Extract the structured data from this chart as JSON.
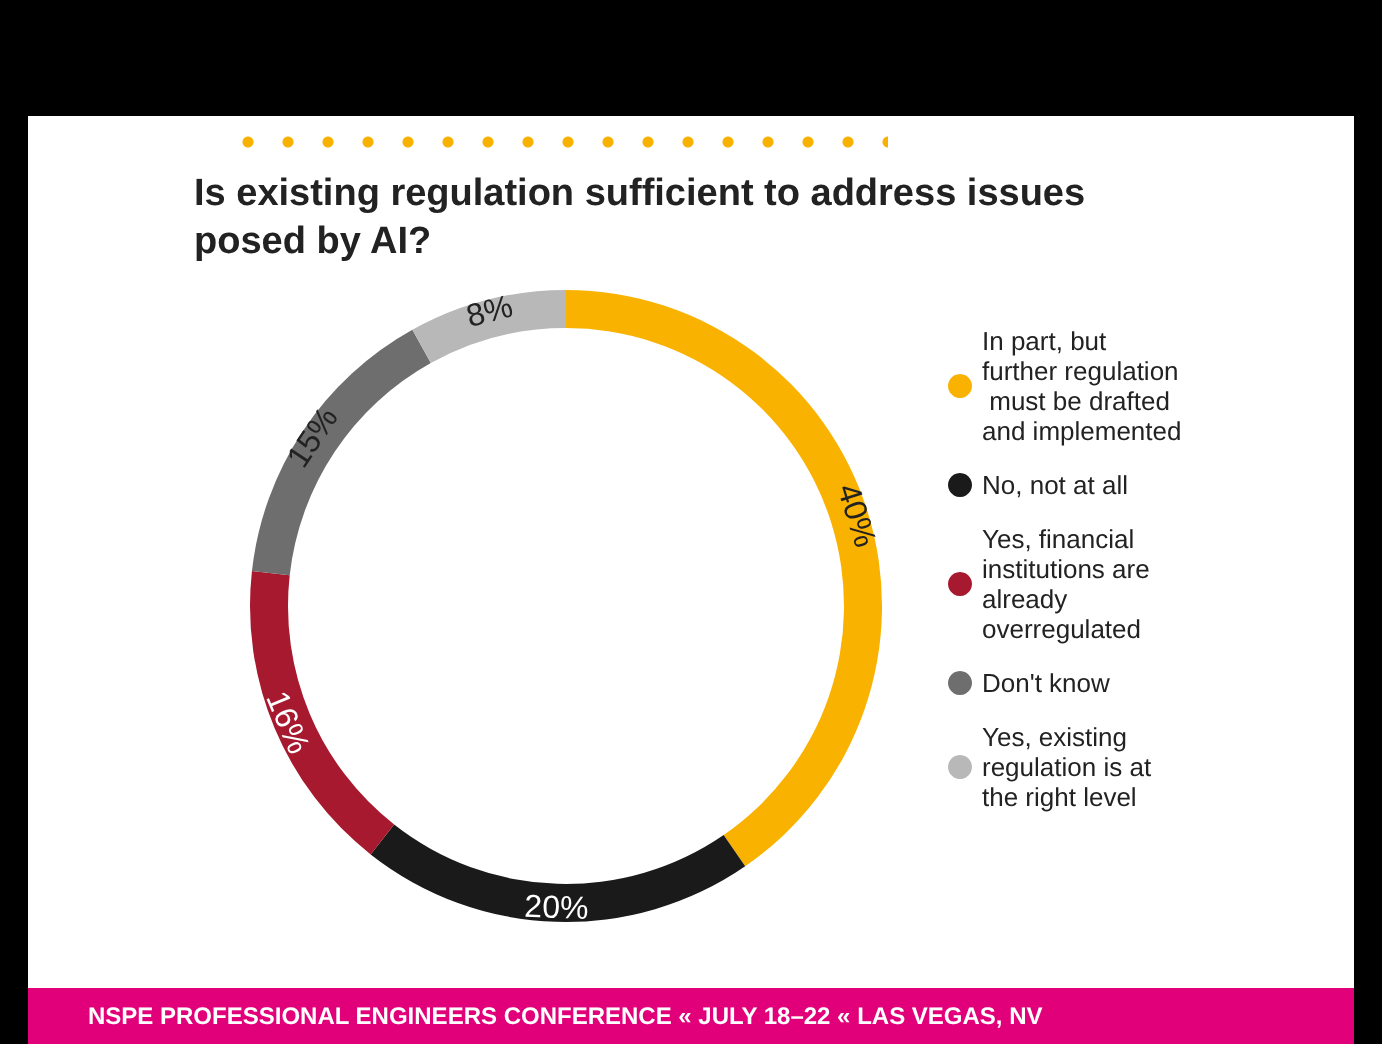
{
  "chart_data": {
    "type": "donut",
    "title": "Is existing regulation sufficient to address issues posed by AI?",
    "categories": [
      "In part, but further regulation must be drafted and implemented",
      "No, not at all",
      "Yes, financial institutions are already overregulated",
      "Don't know",
      "Yes, existing regulation is at the right level"
    ],
    "values": [
      40,
      20,
      16,
      15,
      8
    ],
    "colors": [
      "#f9b200",
      "#1a1a1a",
      "#a6192e",
      "#6e6e6e",
      "#b8b8b8"
    ],
    "value_labels": [
      "40%",
      "20%",
      "16%",
      "15%",
      "8%"
    ],
    "legend": "right",
    "annotations": [
      "NSPE PROFESSIONAL ENGINEERS CONFERENCE « JULY 18–22 « LAS VEGAS, NV"
    ]
  }
}
